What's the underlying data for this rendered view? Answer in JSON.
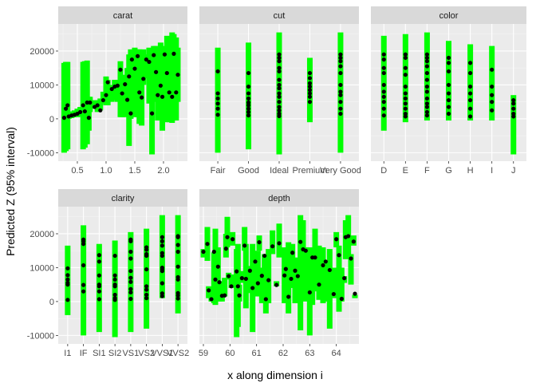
{
  "chart_data": {
    "type": "errorbar-scatter-facets",
    "xlabel": "x along dimension i",
    "ylabel": "Predicted Z (95% interval)",
    "ylim": [
      -12500,
      28000
    ],
    "y_ticks": [
      -10000,
      0,
      10000,
      20000
    ],
    "y_tick_labels": [
      "-10000",
      "0",
      "10000",
      "20000"
    ],
    "grid": true,
    "colors": {
      "interval": "#00FF00",
      "point": "#000000",
      "panel_bg": "#EBEBEB",
      "strip_bg": "#D9D9D9"
    },
    "panels": [
      {
        "title": "carat",
        "kind": "continuous",
        "xlim": [
          0.167,
          2.417
        ],
        "x_ticks": [
          0.5,
          1.0,
          1.5,
          2.0
        ],
        "x_tick_labels": [
          "0.5",
          "1.0",
          "1.5",
          "2.0"
        ],
        "data": [
          [
            0.27,
            -10000,
            16500,
            300
          ],
          [
            0.3,
            -9500,
            16800,
            3000
          ],
          [
            0.33,
            -9000,
            16800,
            4000
          ],
          [
            0.35,
            0,
            2000,
            700
          ],
          [
            0.4,
            200,
            2200,
            1000
          ],
          [
            0.45,
            500,
            2500,
            1200
          ],
          [
            0.5,
            500,
            3000,
            1500
          ],
          [
            0.55,
            800,
            3500,
            2000
          ],
          [
            0.6,
            -9000,
            16800,
            4000
          ],
          [
            0.63,
            -8500,
            17000,
            2200
          ],
          [
            0.67,
            -7500,
            17200,
            4800
          ],
          [
            0.7,
            -3500,
            6500,
            300
          ],
          [
            0.72,
            2000,
            6500,
            4800
          ],
          [
            0.8,
            3000,
            5500,
            3500
          ],
          [
            0.85,
            2000,
            5500,
            4000
          ],
          [
            0.9,
            2500,
            6000,
            2500
          ],
          [
            0.95,
            4500,
            8000,
            5500
          ],
          [
            1.0,
            4000,
            12500,
            7000
          ],
          [
            1.03,
            4000,
            11500,
            10800
          ],
          [
            1.1,
            5000,
            10000,
            8800
          ],
          [
            1.15,
            5500,
            11500,
            9500
          ],
          [
            1.2,
            5000,
            11500,
            9800
          ],
          [
            1.25,
            500,
            17000,
            14500
          ],
          [
            1.28,
            500,
            12000,
            7500
          ],
          [
            1.33,
            500,
            13000,
            10200
          ],
          [
            1.37,
            1000,
            15000,
            5600
          ],
          [
            1.4,
            -8000,
            19000,
            12500
          ],
          [
            1.43,
            0,
            20500,
            1600
          ],
          [
            1.45,
            3000,
            18500,
            17500
          ],
          [
            1.5,
            500,
            21000,
            14800
          ],
          [
            1.55,
            500,
            20500,
            18500
          ],
          [
            1.58,
            -1500,
            20500,
            7800
          ],
          [
            1.62,
            -2000,
            14000,
            6300
          ],
          [
            1.65,
            10000,
            20500,
            11800
          ],
          [
            1.7,
            12000,
            19000,
            17500
          ],
          [
            1.75,
            4500,
            21000,
            16800
          ],
          [
            1.8,
            -10500,
            20500,
            1600
          ],
          [
            1.83,
            7000,
            21500,
            18800
          ],
          [
            1.87,
            5000,
            21500,
            13800
          ],
          [
            1.9,
            -500,
            20000,
            7000
          ],
          [
            1.95,
            -500,
            22500,
            9800
          ],
          [
            1.98,
            -3500,
            21500,
            6500
          ],
          [
            2.02,
            -500,
            21000,
            19000
          ],
          [
            2.06,
            -1000,
            24500,
            13500
          ],
          [
            2.1,
            -1000,
            22500,
            7800
          ],
          [
            2.15,
            -1200,
            25500,
            6500
          ],
          [
            2.18,
            -500,
            25000,
            19200
          ],
          [
            2.22,
            -500,
            24000,
            7800
          ],
          [
            2.25,
            5000,
            21000,
            13000
          ]
        ]
      },
      {
        "title": "cut",
        "kind": "categorical",
        "categories": [
          "Fair",
          "Good",
          "Ideal",
          "Premium",
          "Very Good"
        ],
        "intervals": [
          [
            -10000,
            21000
          ],
          [
            -9000,
            22500
          ],
          [
            -10500,
            25500
          ],
          [
            -1000,
            18000
          ],
          [
            -10000,
            25500
          ]
        ],
        "points": [
          [
            7500,
            6000,
            4500,
            3000,
            1200,
            14000
          ],
          [
            13500,
            9500,
            7500,
            6000,
            4800,
            4000,
            3000,
            2000,
            1000
          ],
          [
            19000,
            18000,
            17000,
            15000,
            14000,
            11500,
            10000,
            9000,
            7500,
            6500,
            5000,
            3500,
            2500,
            1500,
            800
          ],
          [
            13500,
            12000,
            10500,
            9500,
            8500,
            7500,
            6500,
            5000
          ],
          [
            19000,
            18000,
            17000,
            15500,
            13500,
            10000,
            8000,
            7000,
            5000,
            3000,
            1500
          ]
        ]
      },
      {
        "title": "color",
        "kind": "categorical",
        "categories": [
          "D",
          "E",
          "F",
          "G",
          "H",
          "I",
          "J"
        ],
        "intervals": [
          [
            -3500,
            24500
          ],
          [
            -1000,
            25000
          ],
          [
            -500,
            25500
          ],
          [
            -500,
            23000
          ],
          [
            -500,
            22000
          ],
          [
            -500,
            21500
          ],
          [
            -10500,
            7000
          ]
        ],
        "points": [
          [
            19000,
            17500,
            15000,
            13500,
            10000,
            8000,
            6500,
            5000,
            3000,
            1000
          ],
          [
            19000,
            18000,
            15000,
            13000,
            9500,
            7500,
            6000,
            4500,
            3000,
            1500,
            700
          ],
          [
            19000,
            18000,
            17000,
            15500,
            13500,
            11500,
            9500,
            8000,
            6000,
            4500,
            3500,
            2000,
            1000
          ],
          [
            18000,
            16500,
            14000,
            10000,
            7500,
            5500,
            3500,
            1500
          ],
          [
            16500,
            13500,
            9500,
            7500,
            5500,
            3000,
            700
          ],
          [
            14500,
            9500,
            7000,
            5000,
            2500
          ],
          [
            5500,
            4500,
            3000,
            1500,
            700
          ]
        ]
      },
      {
        "title": "clarity",
        "kind": "categorical",
        "categories": [
          "I1",
          "IF",
          "SI1",
          "SI2",
          "VS1",
          "VS2",
          "VVS1",
          "VVS2"
        ],
        "intervals": [
          [
            -4000,
            16500
          ],
          [
            -10000,
            22500
          ],
          [
            -9000,
            17000
          ],
          [
            -10500,
            18000
          ],
          [
            -9000,
            20500
          ],
          [
            -8000,
            21500
          ],
          [
            1000,
            25500
          ],
          [
            -3500,
            25500
          ]
        ],
        "points": [
          [
            9800,
            7800,
            6500,
            5500,
            5000,
            500
          ],
          [
            18300,
            17800,
            17000,
            10700,
            4900,
            3000
          ],
          [
            13700,
            11800,
            7700,
            5000,
            4500,
            3000,
            700
          ],
          [
            13500,
            7700,
            6500,
            5000,
            4500,
            2000,
            1000,
            500
          ],
          [
            18300,
            17800,
            14700,
            12700,
            9000,
            7000,
            5800,
            3700,
            2700,
            800
          ],
          [
            16000,
            15300,
            14000,
            13500,
            9500,
            4500,
            3500,
            2000,
            1000
          ],
          [
            19000,
            17800,
            16500,
            14300,
            13500,
            10000,
            9500,
            9000,
            5400,
            2400,
            1600
          ],
          [
            19300,
            19000,
            16700,
            14700,
            10300,
            7200,
            6500,
            2500,
            1800,
            900
          ]
        ]
      },
      {
        "title": "depth",
        "kind": "continuous",
        "xlim": [
          58.85,
          64.85
        ],
        "x_ticks": [
          59,
          60,
          61,
          62,
          63,
          64
        ],
        "x_tick_labels": [
          "59",
          "60",
          "61",
          "62",
          "63",
          "64"
        ],
        "data": [
          [
            59.0,
            13000,
            15500,
            14700
          ],
          [
            59.15,
            12000,
            22000,
            17000
          ],
          [
            59.2,
            1000,
            4500,
            3300
          ],
          [
            59.3,
            0,
            2500,
            700
          ],
          [
            59.4,
            -500,
            14500,
            14700
          ],
          [
            59.45,
            -1000,
            21500,
            6500
          ],
          [
            59.55,
            5000,
            16000,
            10300
          ],
          [
            59.6,
            0,
            6000,
            5700
          ],
          [
            59.7,
            0,
            3000,
            1700
          ],
          [
            59.8,
            1500,
            7000,
            1800
          ],
          [
            59.85,
            13000,
            20000,
            15600
          ],
          [
            59.9,
            16000,
            25000,
            19000
          ],
          [
            59.95,
            6500,
            8500,
            7500
          ],
          [
            60.05,
            4000,
            8000,
            4500
          ],
          [
            60.1,
            16500,
            20500,
            18400
          ],
          [
            60.25,
            -10500,
            15500,
            8900
          ],
          [
            60.3,
            -7500,
            17000,
            4500
          ],
          [
            60.35,
            0,
            5000,
            1800
          ],
          [
            60.45,
            5500,
            9000,
            6900
          ],
          [
            60.55,
            15000,
            22000,
            16500
          ],
          [
            60.6,
            -2000,
            17000,
            6700
          ],
          [
            60.75,
            2500,
            10500,
            9100
          ],
          [
            60.85,
            -9000,
            17000,
            4000
          ],
          [
            60.95,
            4500,
            12500,
            11800
          ],
          [
            61.05,
            1500,
            15000,
            5400
          ],
          [
            61.1,
            15000,
            19500,
            17500
          ],
          [
            61.2,
            -500,
            10000,
            7600
          ],
          [
            61.3,
            1000,
            14000,
            13500
          ],
          [
            61.35,
            -3500,
            4000,
            700
          ],
          [
            61.45,
            -500,
            15500,
            6300
          ],
          [
            61.6,
            14000,
            21000,
            16300
          ],
          [
            61.75,
            4500,
            6000,
            4900
          ],
          [
            61.85,
            13000,
            23000,
            17200
          ],
          [
            62.05,
            -500,
            16000,
            7700
          ],
          [
            62.1,
            2000,
            14000,
            9600
          ],
          [
            62.2,
            -3500,
            17500,
            1400
          ],
          [
            62.3,
            6000,
            7500,
            6700
          ],
          [
            62.35,
            4000,
            17000,
            14400
          ],
          [
            62.45,
            -500,
            13000,
            9100
          ],
          [
            62.55,
            3500,
            12500,
            7500
          ],
          [
            62.65,
            -8500,
            25500,
            17600
          ],
          [
            62.75,
            1500,
            24000,
            15400
          ],
          [
            62.85,
            0,
            16000,
            15000
          ],
          [
            63.0,
            -10000,
            16000,
            2700
          ],
          [
            63.1,
            -1000,
            15000,
            13000
          ],
          [
            63.2,
            3000,
            21500,
            13000
          ],
          [
            63.35,
            500,
            16500,
            5000
          ],
          [
            63.5,
            -500,
            16000,
            10700
          ],
          [
            63.6,
            0,
            12000,
            11800
          ],
          [
            63.75,
            -8000,
            15500,
            9300
          ],
          [
            63.9,
            1000,
            10000,
            2200
          ],
          [
            64.0,
            16000,
            20500,
            18400
          ],
          [
            64.1,
            -3000,
            16500,
            13700
          ],
          [
            64.2,
            0,
            10000,
            800
          ],
          [
            64.3,
            5500,
            7500,
            6900
          ],
          [
            64.35,
            12500,
            24000,
            19000
          ],
          [
            64.45,
            13000,
            25500,
            19300
          ],
          [
            64.55,
            5000,
            14000,
            12700
          ],
          [
            64.65,
            16500,
            19500,
            17700
          ],
          [
            64.7,
            1000,
            2000,
            2300
          ]
        ]
      }
    ]
  }
}
